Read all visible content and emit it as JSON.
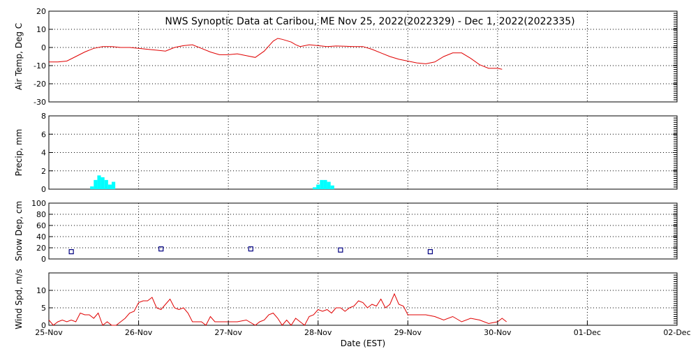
{
  "title": "NWS Synoptic Data at Caribou, ME   Nov 25, 2022(2022329) - Dec  1, 2022(2022335)",
  "xlabel": "Date (EST)",
  "x_ticks": [
    "25-Nov",
    "26-Nov",
    "27-Nov",
    "28-Nov",
    "29-Nov",
    "30-Nov",
    "01-Dec",
    "02-Dec"
  ],
  "colors": {
    "line": "#e00000",
    "precip": "#00ffff",
    "snow": "#000080",
    "axis": "#000000"
  },
  "chart_data": [
    {
      "type": "line",
      "ylabel": "Air Temp, Deg C",
      "ylim": [
        -30,
        20
      ],
      "yticks": [
        -30,
        -20,
        -10,
        0,
        10,
        20
      ],
      "grid": true,
      "x_unit": "days since 25-Nov 00:00",
      "series": [
        {
          "x": [
            0,
            0.1,
            0.2,
            0.3,
            0.4,
            0.5,
            0.6,
            0.7,
            0.8,
            0.9,
            1.0,
            1.1,
            1.2,
            1.3,
            1.4,
            1.5,
            1.6,
            1.7,
            1.8,
            1.9,
            2.0,
            2.1,
            2.2,
            2.3,
            2.4,
            2.5,
            2.55,
            2.6,
            2.7,
            2.75,
            2.8,
            2.9,
            3.0,
            3.1,
            3.2,
            3.3,
            3.4,
            3.5,
            3.6,
            3.7,
            3.8,
            3.9,
            4.0,
            4.1,
            4.2,
            4.3,
            4.4,
            4.5,
            4.6,
            4.7,
            4.8,
            4.9,
            5.0,
            5.05
          ],
          "y": [
            -8,
            -8,
            -7.5,
            -5,
            -2.5,
            -0.5,
            0.5,
            0.5,
            0,
            0,
            -0.5,
            -1,
            -1.5,
            -2,
            0,
            1,
            1.5,
            -0.5,
            -2.5,
            -4,
            -4,
            -3.5,
            -4.5,
            -5.5,
            -2,
            3.5,
            5,
            4.5,
            3,
            1.5,
            0.5,
            1.5,
            1,
            0.5,
            0.8,
            0.7,
            0.5,
            0.5,
            -1,
            -3,
            -5,
            -6.5,
            -7.5,
            -8.5,
            -9,
            -8,
            -5,
            -3,
            -3,
            -6,
            -9.5,
            -11.5,
            -11.5,
            -12
          ]
        }
      ]
    },
    {
      "type": "bar",
      "ylabel": "Precip, mm",
      "ylim": [
        0,
        8
      ],
      "yticks": [
        0,
        2,
        4,
        6,
        8
      ],
      "grid": true,
      "x_unit": "days since 25-Nov 00:00",
      "bar_width_days": 0.04,
      "bars": [
        {
          "x": 0.46,
          "value": 0.3
        },
        {
          "x": 0.5,
          "value": 1.0
        },
        {
          "x": 0.54,
          "value": 1.5
        },
        {
          "x": 0.58,
          "value": 1.3
        },
        {
          "x": 0.62,
          "value": 1.0
        },
        {
          "x": 0.66,
          "value": 0.5
        },
        {
          "x": 0.7,
          "value": 0.8
        },
        {
          "x": 2.94,
          "value": 0.2
        },
        {
          "x": 2.98,
          "value": 0.5
        },
        {
          "x": 3.02,
          "value": 1.0
        },
        {
          "x": 3.06,
          "value": 1.0
        },
        {
          "x": 3.1,
          "value": 0.8
        },
        {
          "x": 3.14,
          "value": 0.4
        }
      ]
    },
    {
      "type": "scatter",
      "ylabel": "Snow Dep, cm",
      "ylim": [
        0,
        100
      ],
      "yticks": [
        0,
        20,
        40,
        60,
        80,
        100
      ],
      "grid": true,
      "x_unit": "days since 25-Nov 00:00",
      "points": [
        {
          "x": 0.25,
          "y": 13
        },
        {
          "x": 1.25,
          "y": 18
        },
        {
          "x": 2.25,
          "y": 18
        },
        {
          "x": 3.25,
          "y": 16
        },
        {
          "x": 4.25,
          "y": 13
        }
      ]
    },
    {
      "type": "line",
      "ylabel": "Wind Spd, m/s",
      "ylim": [
        0,
        15
      ],
      "yticks": [
        0,
        5,
        10
      ],
      "grid": true,
      "x_unit": "days since 25-Nov 00:00",
      "series": [
        {
          "x": [
            0,
            0.05,
            0.1,
            0.15,
            0.2,
            0.25,
            0.3,
            0.35,
            0.4,
            0.45,
            0.5,
            0.55,
            0.6,
            0.65,
            0.7,
            0.75,
            0.8,
            0.85,
            0.9,
            0.95,
            1.0,
            1.05,
            1.1,
            1.15,
            1.2,
            1.25,
            1.3,
            1.35,
            1.4,
            1.45,
            1.5,
            1.55,
            1.6,
            1.65,
            1.7,
            1.75,
            1.8,
            1.85,
            1.9,
            1.95,
            2.0,
            2.1,
            2.2,
            2.3,
            2.35,
            2.4,
            2.45,
            2.5,
            2.55,
            2.6,
            2.65,
            2.7,
            2.75,
            2.8,
            2.85,
            2.9,
            2.95,
            3.0,
            3.05,
            3.1,
            3.15,
            3.2,
            3.25,
            3.3,
            3.35,
            3.4,
            3.45,
            3.5,
            3.55,
            3.6,
            3.65,
            3.7,
            3.75,
            3.8,
            3.85,
            3.9,
            3.95,
            4.0,
            4.1,
            4.2,
            4.3,
            4.4,
            4.5,
            4.6,
            4.7,
            4.8,
            4.9,
            5.0,
            5.05,
            5.1
          ],
          "y": [
            1.5,
            0,
            1,
            1.5,
            1,
            1.5,
            1,
            3.5,
            3,
            3,
            2,
            3.5,
            0,
            1,
            0,
            0,
            1,
            2,
            3.5,
            4,
            6.5,
            7,
            7,
            8,
            5,
            4.5,
            6,
            7.5,
            5,
            4.5,
            5,
            3.5,
            1,
            1,
            1,
            0,
            2.5,
            1,
            1,
            1,
            1,
            1,
            1.5,
            0,
            1,
            1.5,
            3,
            3.5,
            2,
            0,
            1.5,
            0,
            2,
            1,
            0,
            2.5,
            3,
            4.5,
            4,
            4.5,
            3.5,
            5,
            5,
            4,
            5,
            5.5,
            7,
            6.5,
            5,
            6,
            5.5,
            7.5,
            5,
            6,
            9,
            6,
            5.5,
            3,
            3,
            3,
            2.5,
            1.5,
            2.5,
            1,
            2,
            1.5,
            0.5,
            1,
            2,
            1
          ]
        }
      ]
    }
  ]
}
